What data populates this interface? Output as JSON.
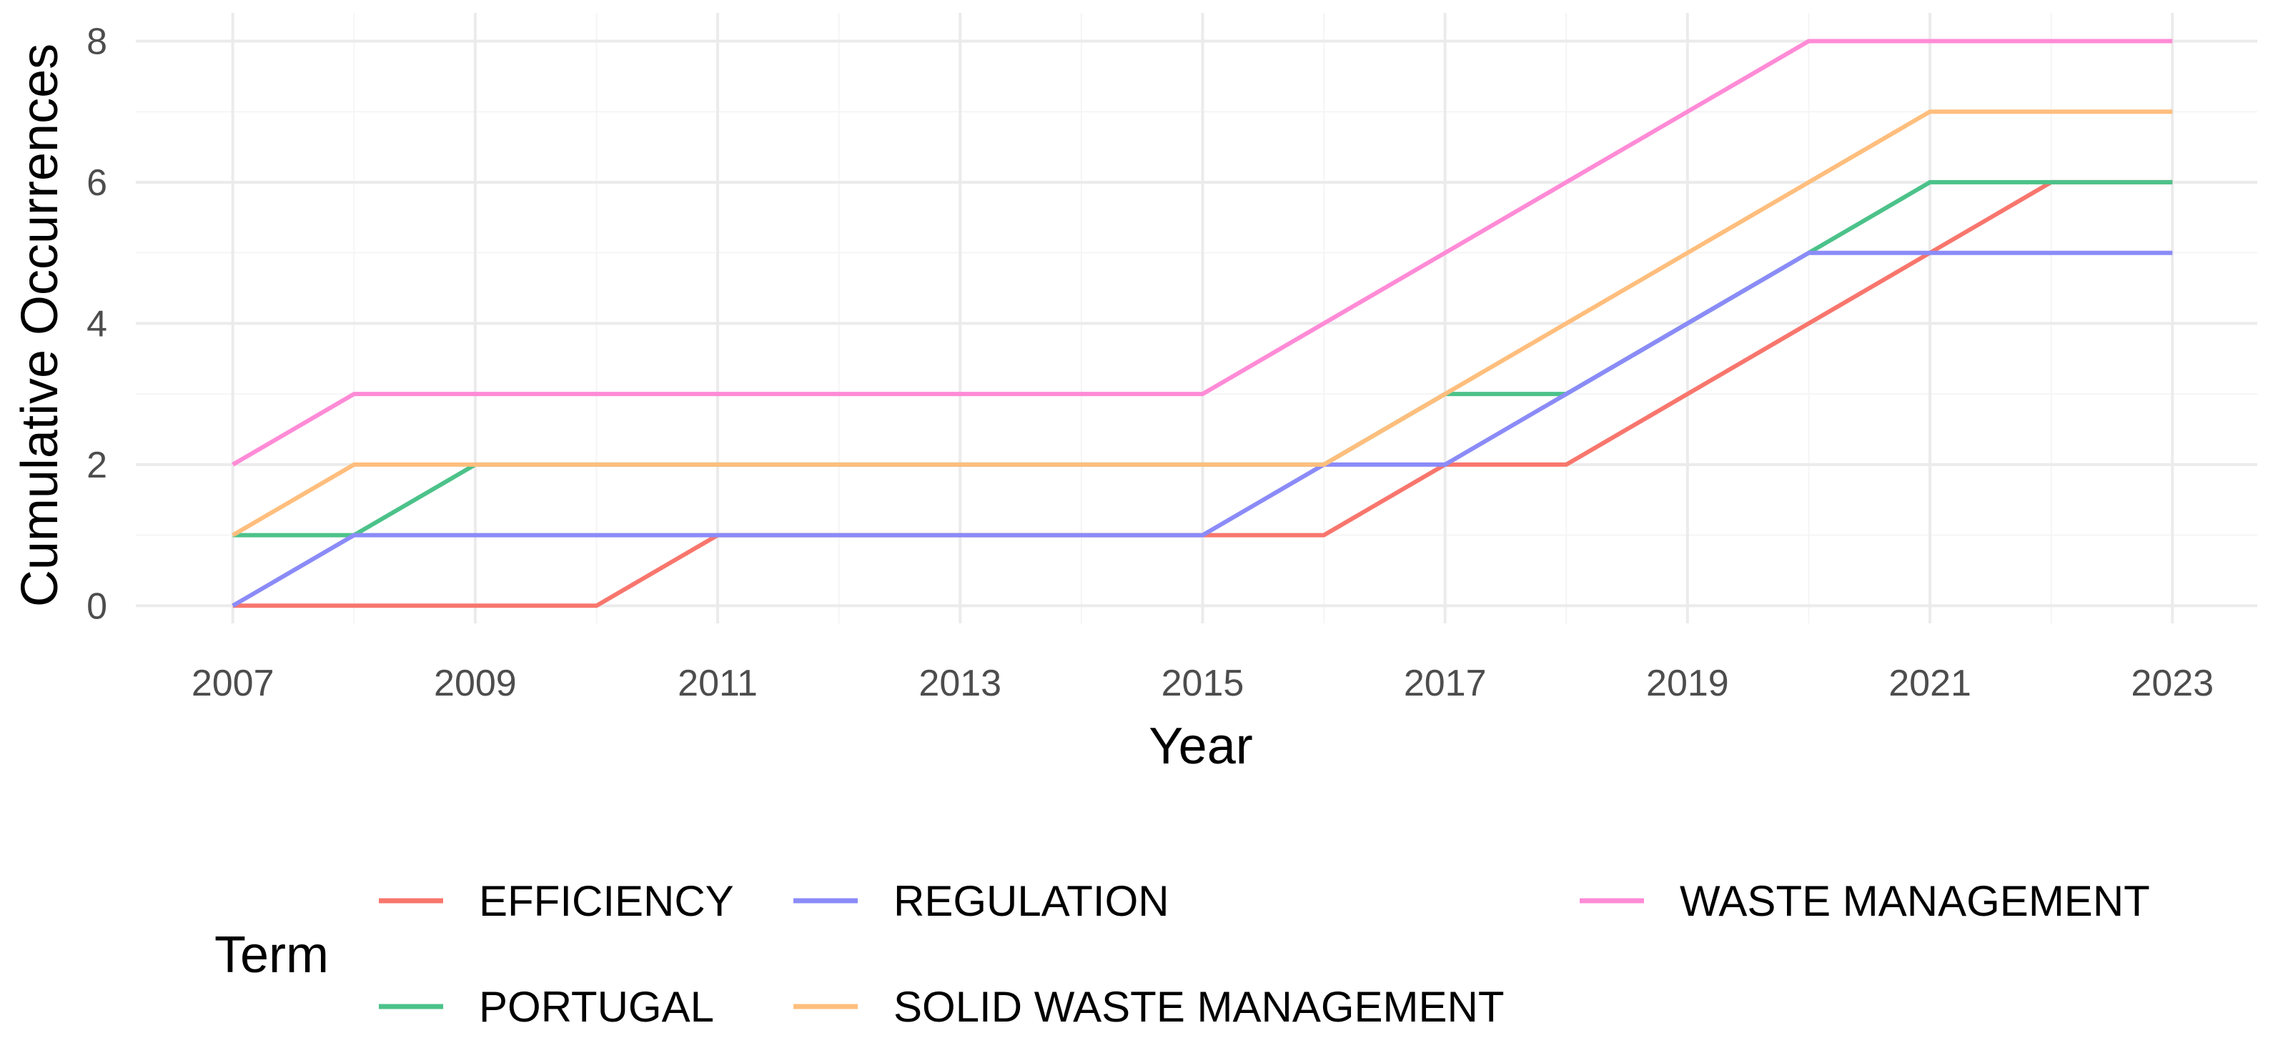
{
  "chart_data": {
    "type": "line",
    "xlabel": "Year",
    "ylabel": "Cumulative Occurrences",
    "xlim": [
      2006.2,
      2023.7
    ],
    "ylim": [
      -0.25,
      8.4
    ],
    "x_ticks": [
      2007,
      2009,
      2011,
      2013,
      2015,
      2017,
      2019,
      2021,
      2023
    ],
    "y_ticks": [
      0,
      2,
      4,
      6,
      8
    ],
    "grid": true,
    "legend": {
      "title": "Term",
      "position": "bottom",
      "entries": [
        {
          "name": "EFFICIENCY",
          "color": "#F8766D"
        },
        {
          "name": "REGULATION",
          "color": "#8B8BF8"
        },
        {
          "name": "WASTE MANAGEMENT",
          "color": "#FF8BD6"
        },
        {
          "name": "PORTUGAL",
          "color": "#4CC28A"
        },
        {
          "name": "SOLID WASTE MANAGEMENT",
          "color": "#FFBE7D"
        }
      ]
    },
    "x": [
      2007,
      2008,
      2009,
      2010,
      2011,
      2012,
      2013,
      2014,
      2015,
      2016,
      2017,
      2018,
      2019,
      2020,
      2021,
      2022,
      2023
    ],
    "series": [
      {
        "name": "EFFICIENCY",
        "color": "#F8766D",
        "values": [
          0,
          0,
          0,
          0,
          1,
          1,
          1,
          1,
          1,
          1,
          2,
          2,
          3,
          4,
          5,
          6,
          6
        ]
      },
      {
        "name": "PORTUGAL",
        "color": "#4CC28A",
        "values": [
          1,
          1,
          2,
          2,
          2,
          2,
          2,
          2,
          2,
          2,
          3,
          3,
          4,
          5,
          6,
          6,
          6
        ]
      },
      {
        "name": "REGULATION",
        "color": "#8B8BF8",
        "values": [
          0,
          1,
          1,
          1,
          1,
          1,
          1,
          1,
          1,
          2,
          2,
          3,
          4,
          5,
          5,
          5,
          5
        ]
      },
      {
        "name": "SOLID WASTE MANAGEMENT",
        "color": "#FFBE7D",
        "values": [
          1,
          2,
          2,
          2,
          2,
          2,
          2,
          2,
          2,
          2,
          3,
          4,
          5,
          6,
          7,
          7,
          7
        ]
      },
      {
        "name": "WASTE MANAGEMENT",
        "color": "#FF8BD6",
        "values": [
          2,
          3,
          3,
          3,
          3,
          3,
          3,
          3,
          3,
          4,
          5,
          6,
          7,
          8,
          8,
          8,
          8
        ]
      }
    ]
  }
}
